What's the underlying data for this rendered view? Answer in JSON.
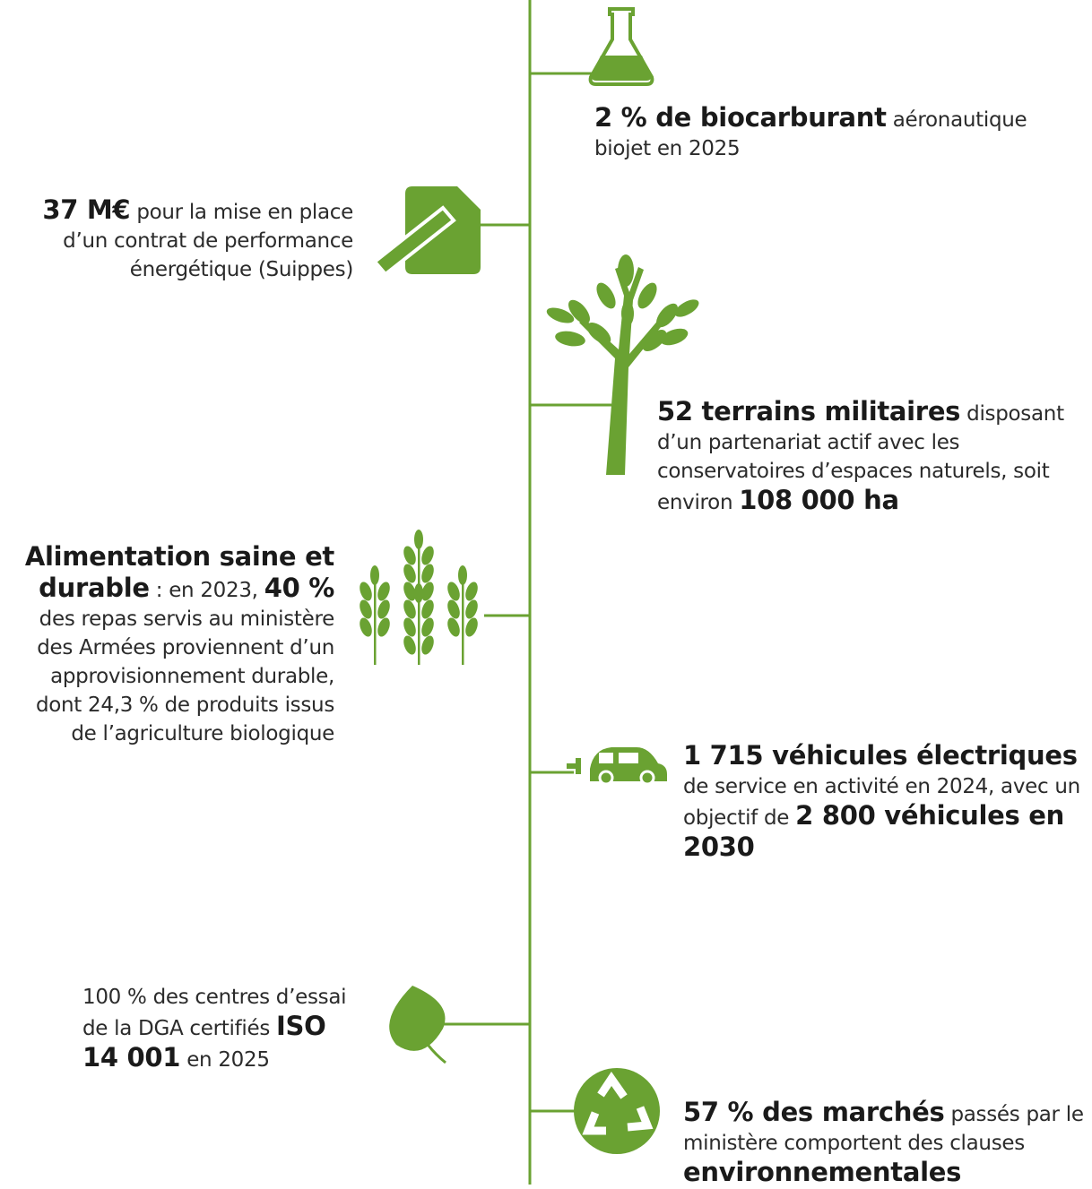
{
  "items": [
    {
      "parts": [
        "2 % de biocarburant",
        " aéronautique biojet en 2025"
      ]
    },
    {
      "parts": [
        "37 M€",
        " pour la mise en place d’un contrat de performance énergétique (Suippes)"
      ]
    },
    {
      "parts": [
        "52 terrains militaires",
        " disposant d’un partenariat actif avec les conservatoires d’espaces naturels, soit environ ",
        "108 000 ha"
      ]
    },
    {
      "parts": [
        "Alimentation saine et durable",
        " : en 2023, ",
        "40 %",
        " des repas servis au ministère des Armées proviennent d’un approvisionnement durable, dont 24,3 % de produits issus de l’agriculture biologique"
      ]
    },
    {
      "parts": [
        "1 715 véhicules électriques",
        " de service en activité en 2024, avec un objectif de ",
        "2 800 véhicules en 2030"
      ]
    },
    {
      "parts": [
        "100 % des centres d’essai de la DGA certifiés ",
        "ISO 14 001",
        " en 2025"
      ]
    },
    {
      "parts": [
        "57 % des marchés",
        " passés par le ministère comportent des clauses ",
        "environnementales"
      ]
    }
  ]
}
